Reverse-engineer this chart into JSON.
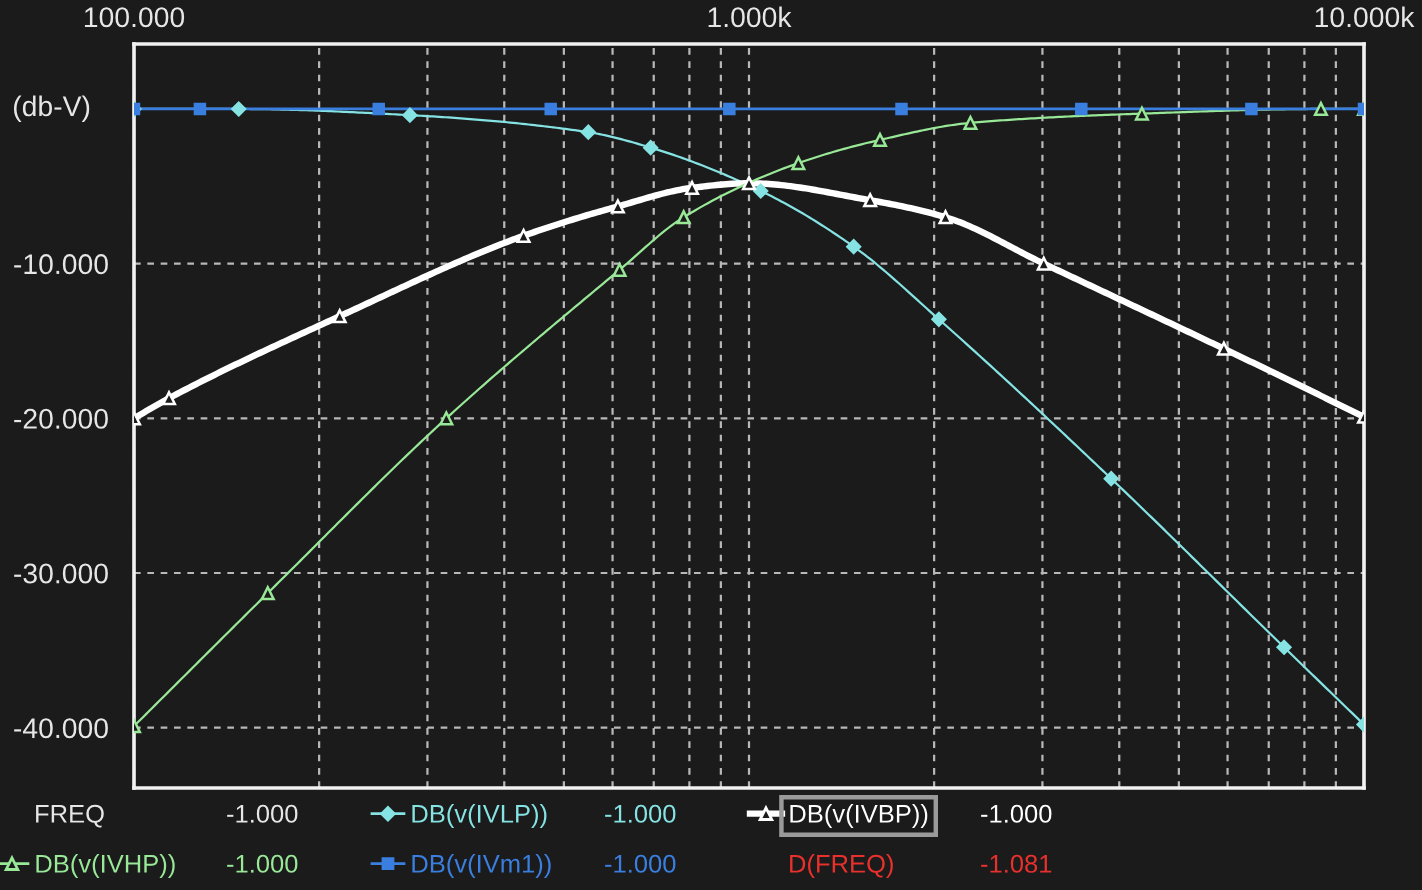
{
  "chart_data": {
    "type": "line",
    "ylabel": "(db-V)",
    "log": "x",
    "xlim": [
      100,
      10000
    ],
    "ylim": [
      -43.9,
      4.2
    ],
    "xticks": [
      {
        "value": 100,
        "label": "100.000"
      },
      {
        "value": 200,
        "label": null
      },
      {
        "value": 300,
        "label": null
      },
      {
        "value": 400,
        "label": null
      },
      {
        "value": 500,
        "label": null
      },
      {
        "value": 600,
        "label": null
      },
      {
        "value": 700,
        "label": null
      },
      {
        "value": 800,
        "label": null
      },
      {
        "value": 900,
        "label": null
      },
      {
        "value": 1000,
        "label": "1.000k"
      },
      {
        "value": 2000,
        "label": null
      },
      {
        "value": 3000,
        "label": null
      },
      {
        "value": 4000,
        "label": null
      },
      {
        "value": 5000,
        "label": null
      },
      {
        "value": 6000,
        "label": null
      },
      {
        "value": 7000,
        "label": null
      },
      {
        "value": 8000,
        "label": null
      },
      {
        "value": 9000,
        "label": null
      },
      {
        "value": 10000,
        "label": "10.000k"
      }
    ],
    "yticks": [
      {
        "value": -10,
        "label": "-10.000"
      },
      {
        "value": -20,
        "label": "-20.000"
      },
      {
        "value": -30,
        "label": "-30.000"
      },
      {
        "value": -40,
        "label": "-40.000"
      }
    ],
    "grid": true,
    "legend": "bottom",
    "annotations": [
      "FREQ",
      "-1.000",
      "-1.000",
      "-1.000",
      "-1.000",
      "-1.000",
      "D(FREQ)",
      "-1.081"
    ],
    "series": [
      {
        "name": "DB(v(IVLP))",
        "color": "#86e3e3",
        "marker": "diamond",
        "x": [
          100,
          148,
          281,
          548,
          692,
          1045,
          1480,
          2036,
          3881,
          7413,
          10000
        ],
        "values": [
          0,
          0,
          -0.4,
          -1.5,
          -2.5,
          -5.3,
          -8.9,
          -13.6,
          -23.9,
          -34.8,
          -39.8
        ]
      },
      {
        "name": "DB(v(IVBP))",
        "color": "#ffffff",
        "marker": "triangle",
        "x": [
          100,
          114,
          216,
          430,
          612,
          808,
          1000,
          1574,
          2087,
          3015,
          5918,
          10000
        ],
        "values": [
          -20.0,
          -18.7,
          -13.4,
          -8.2,
          -6.3,
          -5.1,
          -4.8,
          -5.9,
          -7.0,
          -10.0,
          -15.5,
          -19.9
        ]
      },
      {
        "name": "DB(v(IVHP))",
        "color": "#98e898",
        "marker": "triangle",
        "x": [
          100,
          165,
          322,
          616,
          783,
          1203,
          1633,
          2291,
          4354,
          8511,
          10000
        ],
        "values": [
          -39.9,
          -31.3,
          -20.0,
          -10.4,
          -7.0,
          -3.5,
          -2.0,
          -0.9,
          -0.3,
          0,
          0
        ]
      },
      {
        "name": "DB(v(IVm1))",
        "color": "#3a7fe0",
        "marker": "square",
        "x": [
          100,
          128,
          250,
          476,
          929,
          1770,
          3470,
          6560,
          10000
        ],
        "values": [
          0,
          0,
          0,
          0,
          0,
          0,
          0,
          0,
          0
        ]
      }
    ]
  }
}
